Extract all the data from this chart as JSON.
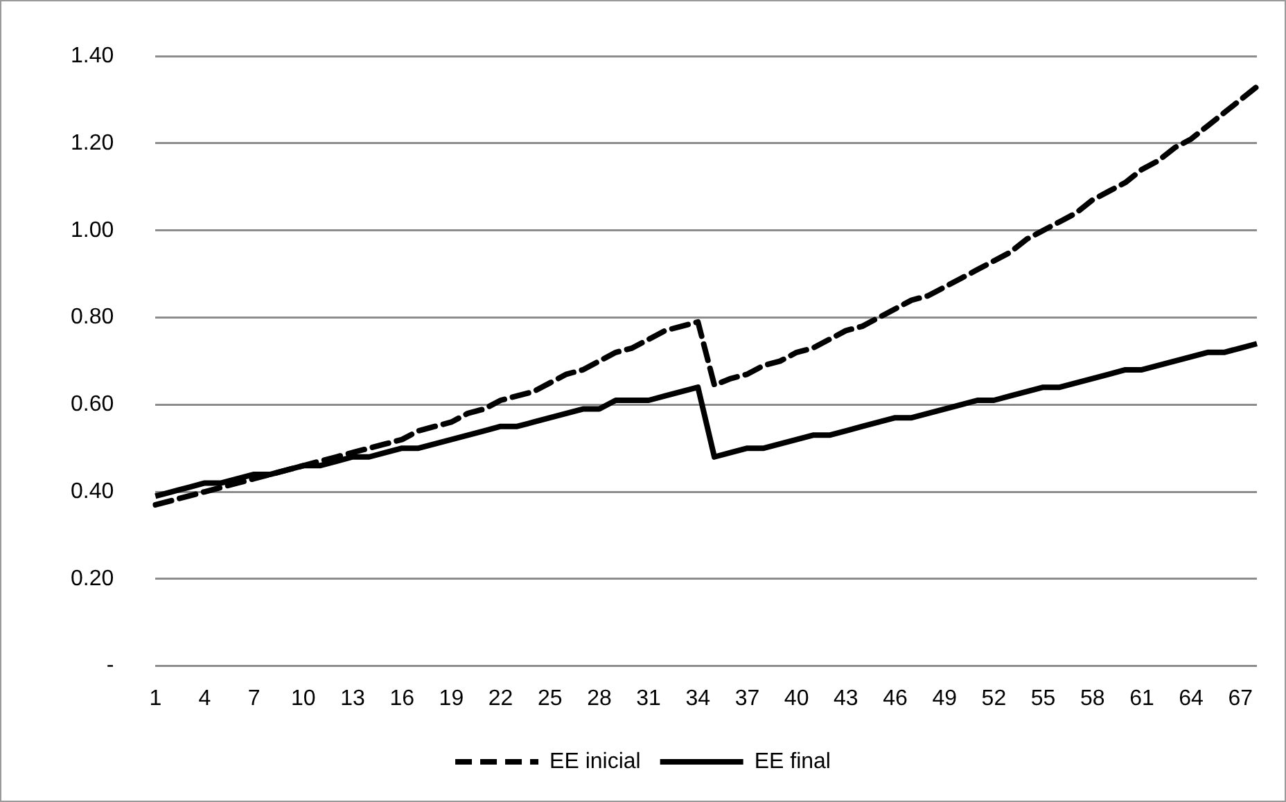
{
  "chart_data": {
    "type": "line",
    "categories": [
      "1",
      null,
      null,
      "4",
      null,
      null,
      "7",
      null,
      null,
      "10",
      null,
      null,
      "13",
      null,
      null,
      "16",
      null,
      null,
      "19",
      null,
      null,
      "22",
      null,
      null,
      "25",
      null,
      null,
      "28",
      null,
      null,
      "31",
      null,
      null,
      "34",
      null,
      null,
      "37",
      null,
      null,
      "40",
      null,
      null,
      "43",
      null,
      null,
      "46",
      null,
      null,
      "49",
      null,
      null,
      "52",
      null,
      null,
      "55",
      null,
      null,
      "58",
      null,
      null,
      "61",
      null,
      null,
      "64",
      null,
      null,
      "67",
      null
    ],
    "series": [
      {
        "name": "EE inicial",
        "color": "#000000",
        "line_style": "dashed",
        "values": [
          0.37,
          0.38,
          0.39,
          0.4,
          0.41,
          0.42,
          0.43,
          0.44,
          0.45,
          0.46,
          0.47,
          0.48,
          0.49,
          0.5,
          0.51,
          0.52,
          0.54,
          0.55,
          0.56,
          0.58,
          0.59,
          0.61,
          0.62,
          0.63,
          0.65,
          0.67,
          0.68,
          0.7,
          0.72,
          0.73,
          0.75,
          0.77,
          0.78,
          0.79,
          0.645,
          0.66,
          0.67,
          0.69,
          0.7,
          0.72,
          0.73,
          0.75,
          0.77,
          0.78,
          0.8,
          0.82,
          0.84,
          0.85,
          0.87,
          0.89,
          0.91,
          0.93,
          0.95,
          0.98,
          1.0,
          1.02,
          1.04,
          1.07,
          1.09,
          1.11,
          1.14,
          1.16,
          1.19,
          1.21,
          1.24,
          1.27,
          1.3,
          1.33
        ]
      },
      {
        "name": "EE final",
        "color": "#000000",
        "line_style": "solid",
        "values": [
          0.39,
          0.4,
          0.41,
          0.42,
          0.42,
          0.43,
          0.44,
          0.44,
          0.45,
          0.46,
          0.46,
          0.47,
          0.48,
          0.48,
          0.49,
          0.5,
          0.5,
          0.51,
          0.52,
          0.53,
          0.54,
          0.55,
          0.55,
          0.56,
          0.57,
          0.58,
          0.59,
          0.59,
          0.61,
          0.61,
          0.61,
          0.62,
          0.63,
          0.64,
          0.48,
          0.49,
          0.5,
          0.5,
          0.51,
          0.52,
          0.53,
          0.53,
          0.54,
          0.55,
          0.56,
          0.57,
          0.57,
          0.58,
          0.59,
          0.6,
          0.61,
          0.61,
          0.62,
          0.63,
          0.64,
          0.64,
          0.65,
          0.66,
          0.67,
          0.68,
          0.68,
          0.69,
          0.7,
          0.71,
          0.72,
          0.72,
          0.73,
          0.74
        ]
      }
    ],
    "ylim": [
      0,
      1.4
    ],
    "yticks": [
      {
        "value": 0,
        "label": "-"
      },
      {
        "value": 0.2,
        "label": "0.20"
      },
      {
        "value": 0.4,
        "label": "0.40"
      },
      {
        "value": 0.6,
        "label": "0.60"
      },
      {
        "value": 0.8,
        "label": "0.80"
      },
      {
        "value": 1.0,
        "label": "1.00"
      },
      {
        "value": 1.2,
        "label": "1.20"
      },
      {
        "value": 1.4,
        "label": "1.40"
      }
    ],
    "grid": "y",
    "legend": "bottom",
    "marker": "none"
  }
}
